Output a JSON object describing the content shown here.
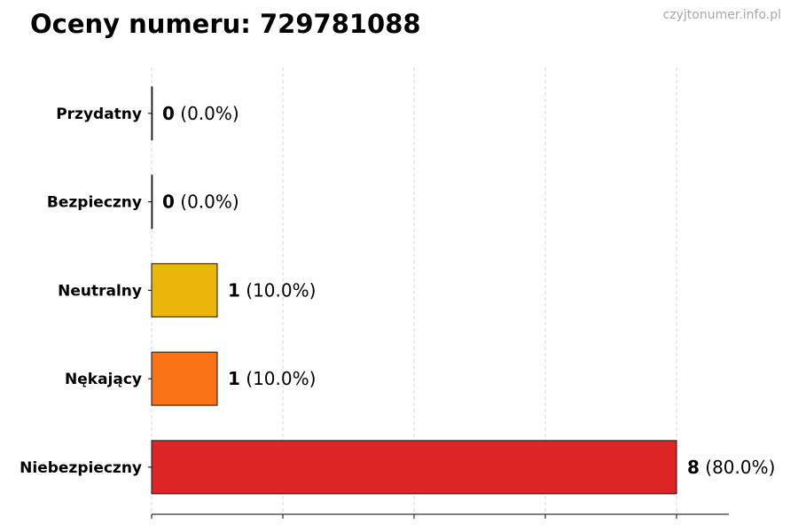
{
  "title": "Oceny numeru: 729781088",
  "watermark": "czyjtonumer.info.pl",
  "chart_data": {
    "type": "bar",
    "orientation": "horizontal",
    "categories": [
      "Przydatny",
      "Bezpieczny",
      "Neutralny",
      "Nękający",
      "Niebezpieczny"
    ],
    "values": [
      0,
      0,
      1,
      1,
      8
    ],
    "percent_labels": [
      "(0.0%)",
      "(0.0%)",
      "(10.0%)",
      "(10.0%)",
      "(80.0%)"
    ],
    "colors": [
      "#888888",
      "#888888",
      "#EBB50C",
      "#F97316",
      "#DC2626"
    ],
    "xlim": [
      0,
      8.8
    ],
    "grid": "x-dashed",
    "x_ticks": [
      0,
      2,
      4,
      6,
      8
    ],
    "title": "Oceny numeru: 729781088",
    "xlabel": "",
    "ylabel": ""
  }
}
